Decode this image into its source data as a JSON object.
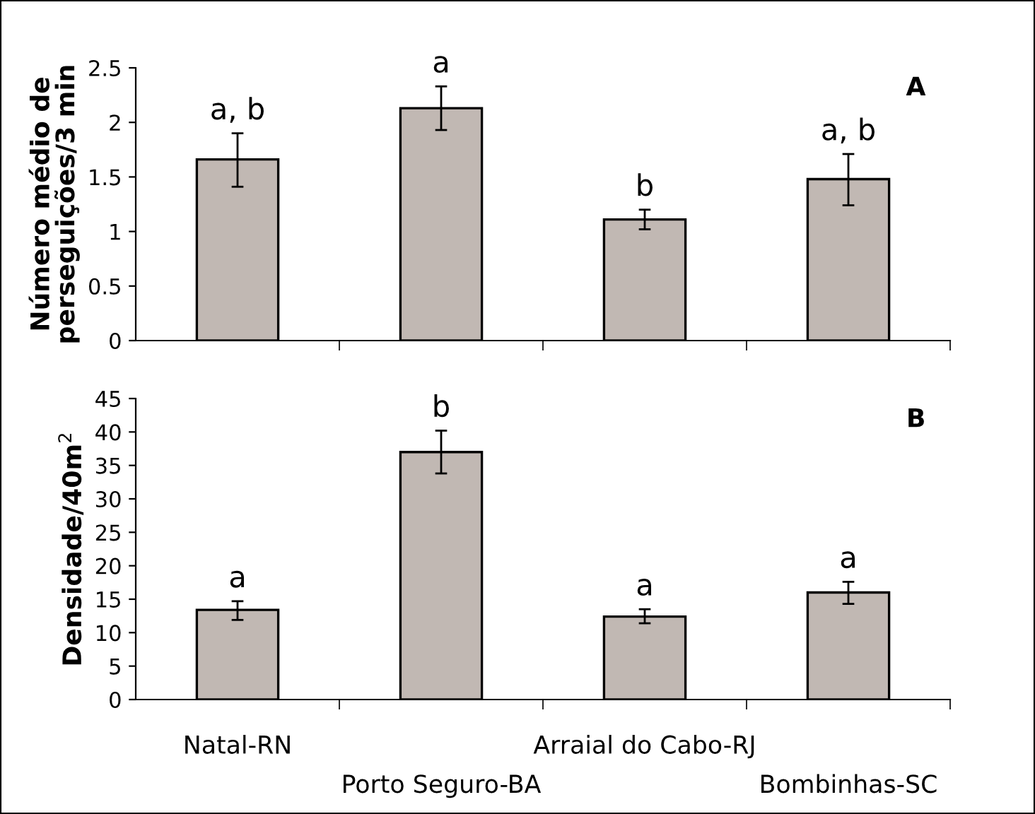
{
  "chart_data": [
    {
      "type": "bar",
      "ylabel": "Número médio de\nperseguições/3 min",
      "categories": [
        "Natal-RN",
        "Porto Seguro-BA",
        "Arraial do Cabo-RJ",
        "Bombinhas-SC"
      ],
      "values": [
        1.66,
        2.13,
        1.11,
        1.48
      ],
      "color": "#c1b8b3",
      "errors": [
        [
          1.41,
          1.9
        ],
        [
          1.93,
          2.33
        ],
        [
          1.02,
          1.2
        ],
        [
          1.24,
          1.71
        ]
      ],
      "ylim": [
        0,
        2.5
      ],
      "yticks": [
        0,
        0.5,
        1,
        1.5,
        2,
        2.5
      ],
      "tick_labels": "y",
      "grid": false,
      "legend": false,
      "annotations": [
        "A",
        {
          "text": "a, b",
          "x": "Natal-RN",
          "y": 1.9
        },
        {
          "text": "a",
          "x": "Porto Seguro-BA",
          "y": 2.33
        },
        {
          "text": "b",
          "x": "Arraial do Cabo-RJ",
          "y": 1.2
        },
        {
          "text": "a, b",
          "x": "Bombinhas-SC",
          "y": 1.71
        }
      ]
    },
    {
      "type": "bar",
      "ylabel": "Densidade/40m$^{2}$",
      "categories": [
        "Natal-RN",
        "Porto Seguro-BA",
        "Arraial do Cabo-RJ",
        "Bombinhas-SC"
      ],
      "values": [
        13.4,
        37,
        12.4,
        16
      ],
      "color": "#c1b8b3",
      "errors": [
        [
          11.9,
          14.7
        ],
        [
          33.8,
          40.2
        ],
        [
          11.4,
          13.5
        ],
        [
          14.3,
          17.6
        ]
      ],
      "ylim": [
        0,
        45
      ],
      "yticks": [
        0,
        5,
        10,
        15,
        20,
        25,
        30,
        35,
        40,
        45
      ],
      "grid": false,
      "legend": false,
      "annotations": [
        "B",
        {
          "text": "a",
          "x": "Natal-RN",
          "y": 14.7
        },
        {
          "text": "b",
          "x": "Porto Seguro-BA",
          "y": 40.2
        },
        {
          "text": "a",
          "x": "Arraial do Cabo-RJ",
          "y": 13.5
        },
        {
          "text": "a",
          "x": "Bombinhas-SC",
          "y": 17.6
        }
      ]
    }
  ]
}
